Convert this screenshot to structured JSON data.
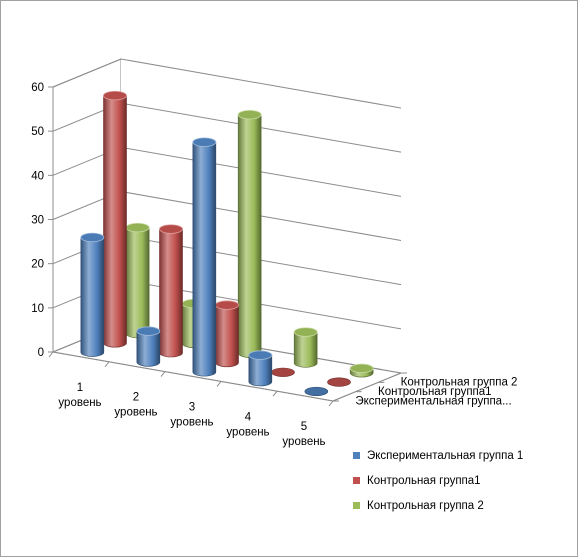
{
  "chart_data": {
    "type": "bar",
    "subtype": "3d-cylinder",
    "title": "",
    "xlabel": "",
    "ylabel": "",
    "ylim": [
      0,
      60
    ],
    "yticks": [
      0,
      10,
      20,
      30,
      40,
      50,
      60
    ],
    "grid": true,
    "legend_position": "right",
    "categories": [
      [
        "1",
        "уровень"
      ],
      [
        "2",
        "уровень"
      ],
      [
        "3",
        "уровень"
      ],
      [
        "4",
        "уровень"
      ],
      [
        "5",
        "уровень"
      ]
    ],
    "series": [
      {
        "name": "Экспериментальная группа 1",
        "depth_label": "Экспериментальная группа...",
        "color": "#4f81bd",
        "values": [
          26,
          7,
          52,
          6,
          0
        ]
      },
      {
        "name": "Контрольная группа1",
        "depth_label": "Контрольная группа1",
        "color": "#c0504d",
        "values": [
          56,
          28,
          13,
          0,
          0
        ]
      },
      {
        "name": "Контрольная группа 2",
        "depth_label": "Контрольная группа 2",
        "color": "#9bbb59",
        "values": [
          24,
          9,
          54,
          7,
          1
        ]
      }
    ]
  }
}
